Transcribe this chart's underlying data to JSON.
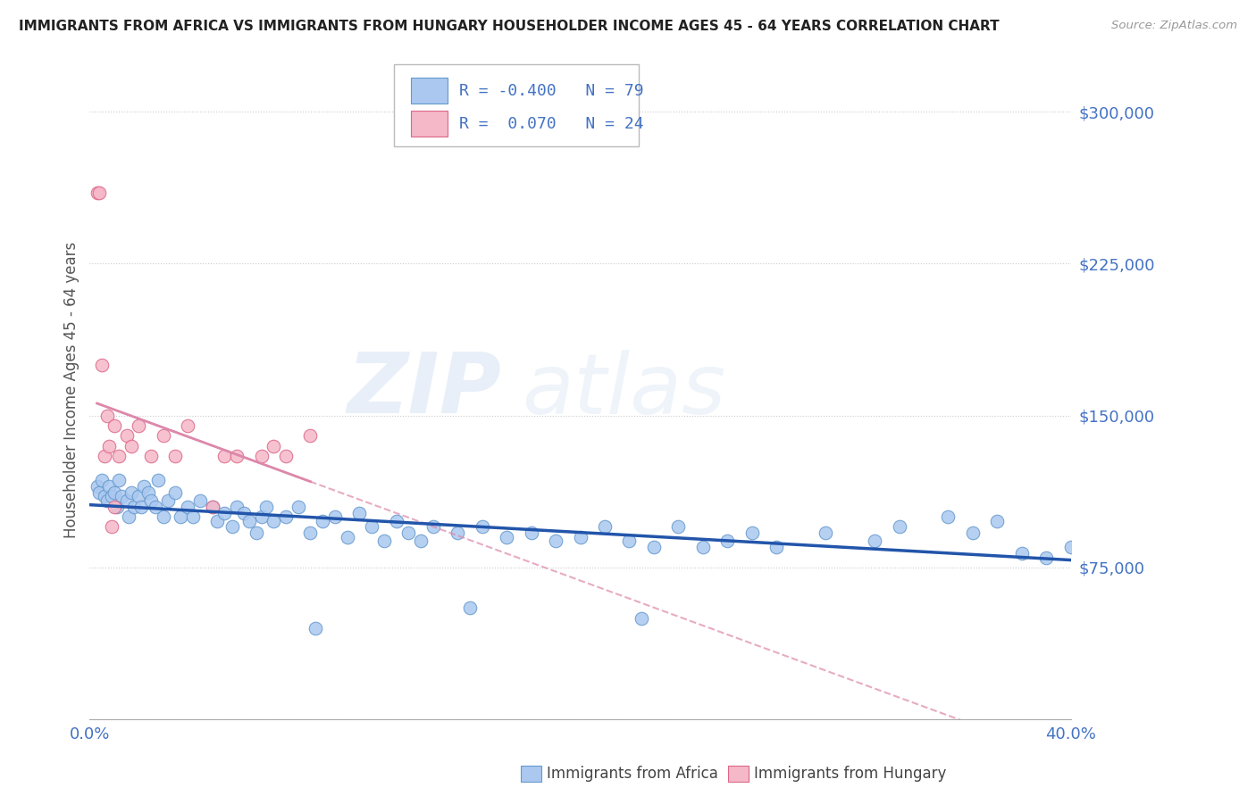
{
  "title": "IMMIGRANTS FROM AFRICA VS IMMIGRANTS FROM HUNGARY HOUSEHOLDER INCOME AGES 45 - 64 YEARS CORRELATION CHART",
  "source": "Source: ZipAtlas.com",
  "ylabel": "Householder Income Ages 45 - 64 years",
  "xlim": [
    0.0,
    40.0
  ],
  "ylim": [
    0,
    325000
  ],
  "yticks": [
    0,
    75000,
    150000,
    225000,
    300000
  ],
  "ytick_labels": [
    "",
    "$75,000",
    "$150,000",
    "$225,000",
    "$300,000"
  ],
  "legend_R1": "-0.400",
  "legend_N1": "79",
  "legend_R2": "0.070",
  "legend_N2": "24",
  "africa_color": "#aac8f0",
  "africa_edge": "#6699cc",
  "hungary_color": "#f5b8c8",
  "hungary_edge": "#dd6688",
  "trendline_africa_color": "#2255aa",
  "trendline_hungary_color": "#dd88aa",
  "africa_x": [
    0.3,
    0.4,
    0.5,
    0.6,
    0.7,
    0.8,
    0.9,
    1.0,
    1.1,
    1.2,
    1.3,
    1.5,
    1.6,
    1.7,
    1.8,
    2.0,
    2.1,
    2.2,
    2.4,
    2.5,
    2.7,
    2.8,
    3.0,
    3.2,
    3.5,
    3.7,
    4.0,
    4.2,
    4.5,
    5.0,
    5.2,
    5.5,
    5.8,
    6.0,
    6.3,
    6.5,
    6.8,
    7.0,
    7.2,
    7.5,
    8.0,
    8.5,
    9.0,
    9.5,
    10.0,
    10.5,
    11.0,
    11.5,
    12.0,
    12.5,
    13.0,
    13.5,
    14.0,
    15.0,
    16.0,
    17.0,
    18.0,
    19.0,
    20.0,
    21.0,
    22.0,
    23.0,
    24.0,
    25.0,
    26.0,
    27.0,
    28.0,
    30.0,
    32.0,
    33.0,
    35.0,
    36.0,
    37.0,
    38.0,
    39.0,
    40.0,
    22.5,
    9.2,
    15.5
  ],
  "africa_y": [
    115000,
    112000,
    118000,
    110000,
    108000,
    115000,
    110000,
    112000,
    105000,
    118000,
    110000,
    108000,
    100000,
    112000,
    105000,
    110000,
    105000,
    115000,
    112000,
    108000,
    105000,
    118000,
    100000,
    108000,
    112000,
    100000,
    105000,
    100000,
    108000,
    105000,
    98000,
    102000,
    95000,
    105000,
    102000,
    98000,
    92000,
    100000,
    105000,
    98000,
    100000,
    105000,
    92000,
    98000,
    100000,
    90000,
    102000,
    95000,
    88000,
    98000,
    92000,
    88000,
    95000,
    92000,
    95000,
    90000,
    92000,
    88000,
    90000,
    95000,
    88000,
    85000,
    95000,
    85000,
    88000,
    92000,
    85000,
    92000,
    88000,
    95000,
    100000,
    92000,
    98000,
    82000,
    80000,
    85000,
    50000,
    45000,
    55000
  ],
  "hungary_x": [
    0.3,
    0.4,
    0.5,
    0.6,
    0.7,
    0.8,
    1.0,
    1.2,
    1.5,
    1.7,
    2.0,
    2.5,
    3.0,
    3.5,
    4.0,
    5.0,
    5.5,
    6.0,
    7.0,
    7.5,
    8.0,
    9.0,
    1.0,
    0.9
  ],
  "hungary_y": [
    260000,
    260000,
    175000,
    130000,
    150000,
    135000,
    145000,
    130000,
    140000,
    135000,
    145000,
    130000,
    140000,
    130000,
    145000,
    105000,
    130000,
    130000,
    130000,
    135000,
    130000,
    140000,
    105000,
    95000
  ],
  "hungary_solid_x_start": 0.3,
  "hungary_solid_x_end": 9.0,
  "hungary_dash_x_start": 0.3,
  "hungary_dash_x_end": 40.0
}
